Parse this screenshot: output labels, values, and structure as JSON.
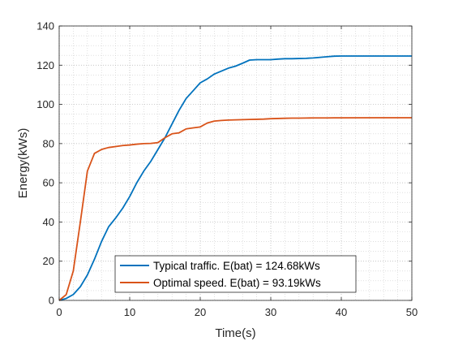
{
  "chart_data": {
    "type": "line",
    "title": "",
    "xlabel": "Time(s)",
    "ylabel": "Energy(kWs)",
    "xlim": [
      0,
      50
    ],
    "ylim": [
      0,
      140
    ],
    "xticks": [
      0,
      10,
      20,
      30,
      40,
      50
    ],
    "yticks": [
      0,
      20,
      40,
      60,
      80,
      100,
      120,
      140
    ],
    "grid": "major and minor, dotted",
    "legend_position": "bottom-center",
    "series": [
      {
        "name": "Typical traffic. E(bat) = 124.68kWs",
        "color": "#0072BD",
        "x": [
          0,
          1,
          2,
          3,
          4,
          5,
          6,
          7,
          8,
          9,
          10,
          11,
          12,
          13,
          14,
          15,
          16,
          17,
          18,
          19,
          20,
          21,
          22,
          23,
          24,
          25,
          26,
          27,
          28,
          29,
          30,
          31,
          32,
          33,
          34,
          35,
          36,
          37,
          38,
          39,
          40,
          45,
          50
        ],
        "values": [
          0,
          1,
          3,
          7,
          13,
          21,
          30,
          37.5,
          42,
          47,
          53,
          60,
          66,
          71,
          77,
          83,
          90,
          97,
          103,
          107,
          111,
          113,
          115.5,
          117,
          118.5,
          119.5,
          121,
          122.6,
          122.8,
          122.8,
          122.8,
          123.1,
          123.3,
          123.3,
          123.4,
          123.5,
          123.7,
          124,
          124.3,
          124.6,
          124.68,
          124.68,
          124.68
        ]
      },
      {
        "name": "Optimal speed. E(bat) = 93.19kWs",
        "color": "#D95319",
        "x": [
          0,
          1,
          2,
          3,
          4,
          5,
          6,
          7,
          8,
          9,
          10,
          11,
          12,
          13,
          14,
          15,
          16,
          17,
          18,
          19,
          20,
          21,
          22,
          23,
          24,
          25,
          26,
          27,
          28,
          29,
          30,
          31,
          32,
          33,
          34,
          35,
          36,
          37,
          38,
          39,
          40,
          45,
          50
        ],
        "values": [
          0,
          3,
          15,
          40,
          66,
          75,
          77,
          78,
          78.5,
          79,
          79.3,
          79.7,
          80,
          80.1,
          80.5,
          83,
          85,
          85.5,
          87.5,
          88,
          88.5,
          90.5,
          91.5,
          91.8,
          92,
          92.1,
          92.2,
          92.3,
          92.4,
          92.5,
          92.7,
          92.8,
          92.9,
          93,
          93,
          93.05,
          93.1,
          93.1,
          93.1,
          93.15,
          93.15,
          93.19,
          93.19
        ]
      }
    ]
  }
}
